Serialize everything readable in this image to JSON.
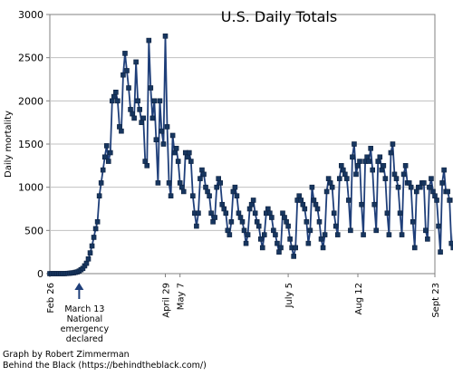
{
  "chart_data": {
    "type": "line",
    "title": "U.S. Daily Totals",
    "ylabel": "Daily mortality",
    "xlabel": "",
    "ylim": [
      0,
      3000
    ],
    "y_ticks": [
      0,
      500,
      1000,
      1500,
      2000,
      2500,
      3000
    ],
    "grid": "horizontal",
    "legend": "none",
    "colors": {
      "line": "#1f3f7a",
      "marker": "#17365f",
      "grid": "#c0c0c0"
    },
    "x_ticks": [
      {
        "day": 0,
        "label": "Feb 26"
      },
      {
        "day": 63,
        "label": "April 29"
      },
      {
        "day": 71,
        "label": "May 7"
      },
      {
        "day": 130,
        "label": "July 5"
      },
      {
        "day": 168,
        "label": "Aug 12"
      },
      {
        "day": 210,
        "label": "Sept 23"
      }
    ],
    "annotation": {
      "day": 16,
      "lines": [
        "March 13",
        "National",
        "emergency",
        "declared"
      ]
    },
    "series": [
      {
        "x_start_label": "Feb 26",
        "values": [
          0,
          0,
          0,
          0,
          0,
          0,
          0,
          0,
          0,
          2,
          3,
          5,
          8,
          10,
          15,
          20,
          30,
          45,
          60,
          90,
          120,
          170,
          240,
          320,
          420,
          520,
          600,
          900,
          1050,
          1200,
          1350,
          1480,
          1300,
          1400,
          2000,
          2050,
          2100,
          2000,
          1700,
          1650,
          2300,
          2550,
          2350,
          2150,
          1900,
          1850,
          1800,
          2450,
          2000,
          1900,
          1750,
          1800,
          1300,
          1250,
          2700,
          2150,
          1800,
          2000,
          1550,
          1050,
          2000,
          1650,
          1500,
          2750,
          1700,
          1050,
          900,
          1600,
          1400,
          1450,
          1300,
          1050,
          1000,
          950,
          1400,
          1350,
          1400,
          1300,
          900,
          700,
          550,
          700,
          1100,
          1200,
          1150,
          1000,
          950,
          900,
          700,
          600,
          650,
          1000,
          1100,
          1050,
          800,
          750,
          700,
          500,
          450,
          600,
          950,
          1000,
          900,
          700,
          650,
          600,
          500,
          350,
          450,
          750,
          800,
          850,
          700,
          600,
          550,
          400,
          300,
          450,
          700,
          750,
          700,
          650,
          500,
          450,
          350,
          250,
          300,
          700,
          650,
          600,
          550,
          400,
          300,
          200,
          300,
          850,
          900,
          850,
          800,
          750,
          600,
          350,
          500,
          1000,
          850,
          800,
          750,
          600,
          400,
          300,
          450,
          950,
          1100,
          1050,
          1000,
          700,
          550,
          450,
          1100,
          1250,
          1200,
          1150,
          1100,
          850,
          500,
          1350,
          1500,
          1150,
          1250,
          1300,
          800,
          450,
          1300,
          1350,
          1300,
          1450,
          1200,
          800,
          500,
          1300,
          1350,
          1200,
          1250,
          1100,
          700,
          450,
          1400,
          1500,
          1150,
          1100,
          1000,
          700,
          450,
          1150,
          1250,
          1050,
          1050,
          1000,
          600,
          300,
          950,
          1000,
          1000,
          1050,
          1050,
          500,
          400,
          1000,
          1100,
          950,
          900,
          850,
          550,
          250,
          1050,
          1200,
          950,
          950,
          850,
          350,
          300,
          850
        ]
      }
    ]
  },
  "credits": [
    "Graph by Robert Zimmerman",
    "Behind the Black (https://behindtheblack.com/)"
  ]
}
